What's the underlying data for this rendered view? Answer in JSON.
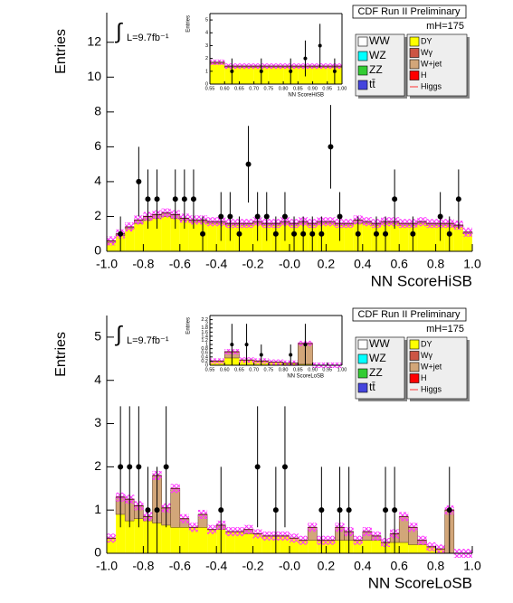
{
  "chart_data": [
    {
      "type": "histogram",
      "x_label": "NN ScoreHiSB",
      "y_label": "Entries",
      "header": "CDF Run II Preliminary",
      "mass_label": "mH=175",
      "lumi_symbol": "∫",
      "lumi": "L=9.7fb⁻¹",
      "bins": [
        -1,
        -0.95,
        -0.9,
        -0.85,
        -0.8,
        -0.75,
        -0.7,
        -0.65,
        -0.6,
        -0.55,
        -0.5,
        -0.45,
        -0.4,
        -0.35,
        -0.3,
        -0.25,
        -0.2,
        -0.15,
        -0.1,
        -0.05,
        0,
        0.05,
        0.1,
        0.15,
        0.2,
        0.25,
        0.3,
        0.35,
        0.4,
        0.45,
        0.5,
        0.55,
        0.6,
        0.65,
        0.7,
        0.75,
        0.8,
        0.85,
        0.9,
        0.95,
        1
      ],
      "series": [
        {
          "name": "DY",
          "color": "#ffff00",
          "values": [
            0.5,
            0.9,
            1.3,
            1.6,
            1.8,
            1.9,
            2.0,
            1.9,
            1.8,
            1.7,
            1.7,
            1.6,
            1.6,
            1.5,
            1.5,
            1.5,
            1.6,
            1.5,
            1.5,
            1.6,
            1.5,
            1.6,
            1.5,
            1.6,
            1.6,
            1.5,
            1.5,
            1.6,
            1.6,
            1.5,
            1.6,
            1.6,
            1.5,
            1.5,
            1.6,
            1.5,
            1.5,
            1.5,
            1.4,
            1.0
          ]
        },
        {
          "name": "W+jet",
          "color": "#d2a679",
          "values": [
            0.1,
            0.1,
            0.1,
            0.2,
            0.2,
            0.2,
            0.2,
            0.2,
            0.1,
            0.1,
            0.1,
            0.1,
            0.1,
            0.1,
            0.1,
            0.1,
            0.1,
            0.1,
            0.1,
            0.1,
            0.1,
            0.1,
            0.1,
            0.1,
            0.1,
            0.1,
            0.1,
            0.2,
            0.1,
            0.1,
            0.1,
            0.1,
            0.1,
            0.1,
            0.1,
            0.1,
            0.1,
            0.1,
            0.1,
            0.1
          ]
        }
      ],
      "points": {
        "x": [
          -0.925,
          -0.825,
          -0.775,
          -0.725,
          -0.625,
          -0.575,
          -0.525,
          -0.475,
          -0.375,
          -0.325,
          -0.275,
          -0.225,
          -0.175,
          -0.125,
          -0.075,
          -0.025,
          0.025,
          0.075,
          0.125,
          0.175,
          0.225,
          0.275,
          0.375,
          0.475,
          0.525,
          0.575,
          0.675,
          0.825,
          0.875,
          0.925
        ],
        "values": [
          1,
          4,
          3,
          3,
          3,
          3,
          3,
          1,
          2,
          2,
          1,
          5,
          2,
          2,
          1,
          2,
          1,
          1,
          1,
          1,
          6,
          2,
          1,
          1,
          1,
          3,
          1,
          2,
          1,
          3
        ],
        "errors": [
          1,
          2,
          1.7,
          1.7,
          1.7,
          1.7,
          1.7,
          1,
          1.4,
          1.4,
          1,
          2.2,
          1.4,
          1.4,
          1,
          1.4,
          1,
          1,
          1,
          1,
          2.4,
          1.4,
          1,
          1,
          1,
          1.7,
          1,
          1.4,
          1,
          1.7
        ]
      },
      "legend_left": [
        {
          "name": "WW",
          "color": "#ffffff"
        },
        {
          "name": "WZ",
          "color": "#00ffff"
        },
        {
          "name": "ZZ",
          "color": "#33cc33"
        },
        {
          "name": "tt̄",
          "color": "#4444dd"
        }
      ],
      "legend_right": [
        {
          "name": "Wγ",
          "color": "#cc5544"
        },
        {
          "name": "H",
          "color": "#ff0000"
        },
        {
          "name": "Higgs",
          "color": "#ff3333"
        }
      ],
      "xlim": [
        -1,
        1
      ],
      "ylim": [
        0,
        13.7
      ],
      "xticks": [
        {
          "value": -1,
          "label": "-1.0"
        },
        -0.8,
        -0.6,
        -0.4,
        -0.2,
        {
          "value": 0,
          "label": "-0.0"
        },
        0.2,
        0.4,
        0.6,
        0.8,
        {
          "value": 1,
          "label": "1.0"
        }
      ],
      "yticks": [
        0,
        2,
        4,
        6,
        8,
        10,
        12
      ]
    },
    {
      "type": "histogram",
      "x_label": "NN ScoreHiSB",
      "y_label": "Entries",
      "bins": [
        0.55,
        0.6,
        0.65,
        0.7,
        0.75,
        0.8,
        0.85,
        0.9,
        0.95,
        1
      ],
      "series": [
        {
          "name": "DY",
          "color": "#ffff00",
          "values": [
            1.6,
            1.3,
            1.3,
            1.3,
            1.3,
            1.3,
            1.3,
            1.3,
            1.3
          ]
        },
        {
          "name": "W+jet",
          "color": "#d2a679",
          "values": [
            0.1,
            0.1,
            0.1,
            0.1,
            0.1,
            0.1,
            0.1,
            0.1,
            0.1
          ]
        }
      ],
      "points": {
        "x": [
          0.625,
          0.725,
          0.825,
          0.875,
          0.925,
          0.975
        ],
        "values": [
          1,
          1,
          1,
          2,
          3,
          1
        ],
        "errors": [
          1,
          1,
          1,
          1.4,
          1.7,
          1
        ]
      },
      "xlim": [
        0.55,
        1
      ],
      "ylim": [
        0,
        5.5
      ],
      "xticks": [
        0.55,
        {
          "value": 0.6,
          "label": "0.60"
        },
        0.65,
        {
          "value": 0.7,
          "label": "0.70"
        },
        0.75,
        {
          "value": 0.8,
          "label": "0.80"
        },
        0.85,
        {
          "value": 0.9,
          "label": "0.90"
        },
        0.95,
        {
          "value": 1,
          "label": "1.00"
        }
      ],
      "yticks": [
        0,
        1,
        2,
        3,
        4,
        5
      ]
    },
    {
      "type": "histogram",
      "x_label": "NN ScoreLoSB",
      "y_label": "Entries",
      "header": "CDF Run II Preliminary",
      "mass_label": "mH=175",
      "lumi_symbol": "∫",
      "lumi": "L=9.7fb⁻¹",
      "bins": [
        -1,
        -0.95,
        -0.9,
        -0.85,
        -0.8,
        -0.75,
        -0.7,
        -0.65,
        -0.6,
        -0.55,
        -0.5,
        -0.45,
        -0.4,
        -0.35,
        -0.3,
        -0.25,
        -0.2,
        -0.15,
        -0.1,
        -0.05,
        0,
        0.05,
        0.1,
        0.15,
        0.2,
        0.25,
        0.3,
        0.35,
        0.4,
        0.45,
        0.5,
        0.55,
        0.6,
        0.65,
        0.7,
        0.75,
        0.8,
        0.85,
        0.9,
        0.95,
        1
      ],
      "series": [
        {
          "name": "DY",
          "color": "#ffff00",
          "values": [
            0.35,
            0.9,
            0.75,
            0.8,
            0.75,
            0.7,
            0.65,
            0.6,
            0.6,
            0.6,
            0.6,
            0.55,
            0.55,
            0.5,
            0.5,
            0.45,
            0.45,
            0.4,
            0.4,
            0.4,
            0.35,
            0.3,
            0.3,
            0.3,
            0.3,
            0.3,
            0.3,
            0.3,
            0.3,
            0.3,
            0.25,
            0.25,
            0.25,
            0.2,
            0.2,
            0.15,
            0.1,
            0,
            0,
            0
          ]
        },
        {
          "name": "W+jet",
          "color": "#d2a679",
          "values": [
            0,
            0.4,
            0.5,
            0.3,
            0.1,
            1.1,
            0.4,
            0.9,
            0.2,
            0,
            0.3,
            0,
            0.1,
            0,
            0,
            0.1,
            0,
            0,
            0,
            0,
            0,
            0,
            0.3,
            0,
            0,
            0.3,
            0.2,
            0,
            0.2,
            0.1,
            0,
            0.2,
            0.6,
            0.4,
            0.1,
            0,
            0,
            1.0,
            0,
            0
          ]
        }
      ],
      "points": {
        "x": [
          -0.925,
          -0.875,
          -0.825,
          -0.775,
          -0.725,
          -0.675,
          -0.375,
          -0.175,
          -0.075,
          -0.025,
          0.175,
          0.275,
          0.325,
          0.525,
          0.575,
          0.875
        ],
        "values": [
          2,
          2,
          2,
          1,
          1,
          2,
          1,
          2,
          1,
          2,
          1,
          1,
          1,
          1,
          1,
          1
        ],
        "errors": [
          1.4,
          1.4,
          1.4,
          1,
          1,
          1.4,
          1,
          1.4,
          1,
          1.4,
          1,
          1,
          1,
          1,
          1,
          1
        ]
      },
      "legend_left": [
        {
          "name": "WW",
          "color": "#ffffff"
        },
        {
          "name": "WZ",
          "color": "#00ffff"
        },
        {
          "name": "ZZ",
          "color": "#33cc33"
        },
        {
          "name": "tt̄",
          "color": "#4444dd"
        }
      ],
      "legend_right": [
        {
          "name": "Wγ",
          "color": "#cc5544"
        },
        {
          "name": "H",
          "color": "#ff0000"
        },
        {
          "name": "Higgs",
          "color": "#ff3333"
        }
      ],
      "xlim": [
        -1,
        1
      ],
      "ylim": [
        0,
        5.5
      ],
      "xticks": [
        {
          "value": -1,
          "label": "-1.0"
        },
        -0.8,
        -0.6,
        -0.4,
        -0.2,
        {
          "value": 0,
          "label": "-0.0"
        },
        0.2,
        0.4,
        0.6,
        0.8,
        {
          "value": 1,
          "label": "1.0"
        }
      ],
      "yticks": [
        0,
        1,
        2,
        3,
        4,
        5
      ]
    },
    {
      "type": "histogram",
      "x_label": "NN ScoreLoSB",
      "y_label": "Entries",
      "bins": [
        0.55,
        0.6,
        0.65,
        0.7,
        0.75,
        0.8,
        0.85,
        0.9,
        0.95,
        1
      ],
      "series": [
        {
          "name": "DY",
          "color": "#ffff00",
          "values": [
            0.2,
            0.35,
            0.25,
            0.2,
            0.15,
            0.1,
            0.05,
            0,
            0
          ]
        },
        {
          "name": "W+jet",
          "color": "#d2a679",
          "values": [
            0,
            0.3,
            0,
            0,
            0,
            0,
            1.0,
            0,
            0
          ]
        }
      ],
      "points": {
        "x": [
          0.625,
          0.675,
          0.725,
          0.825,
          0.875
        ],
        "values": [
          1,
          1,
          0.5,
          0.5,
          1
        ],
        "errors": [
          1,
          1,
          0.5,
          0.5,
          1
        ]
      },
      "xlim": [
        0.55,
        1
      ],
      "ylim": [
        0,
        2.4
      ],
      "xticks": [
        0.55,
        {
          "value": 0.6,
          "label": "0.60"
        },
        0.65,
        {
          "value": 0.7,
          "label": "0.70"
        },
        0.75,
        {
          "value": 0.8,
          "label": "0.80"
        },
        0.85,
        {
          "value": 0.9,
          "label": "0.90"
        },
        0.95,
        {
          "value": 1,
          "label": "1.00"
        }
      ],
      "yticks": [
        0,
        0.2,
        0.4,
        0.6,
        0.8,
        1,
        1.2,
        1.4,
        1.6,
        1.8,
        2,
        2.2
      ]
    }
  ]
}
